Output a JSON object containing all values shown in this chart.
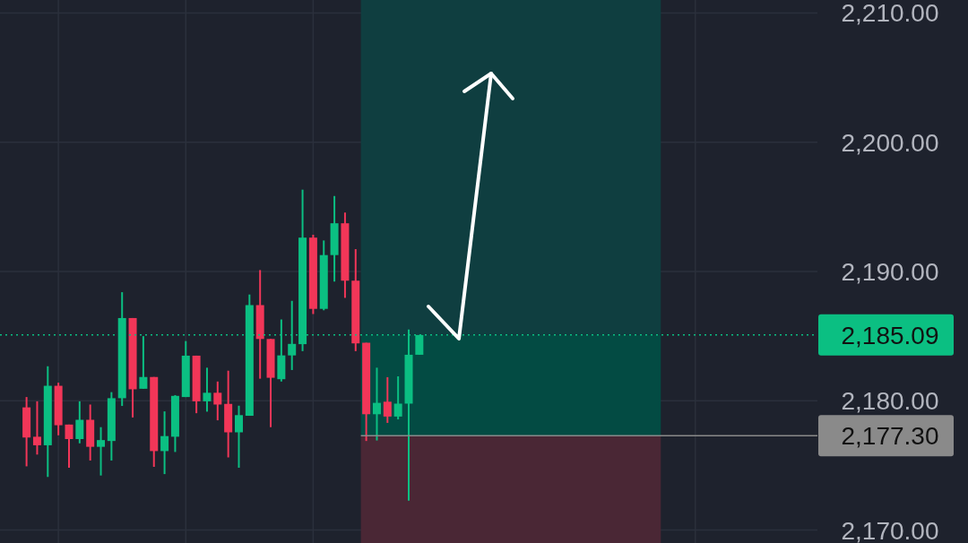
{
  "chart_data": {
    "type": "candlestick",
    "categories": [
      null,
      null,
      null,
      null,
      null,
      null,
      null,
      null,
      null,
      null,
      null,
      null,
      null,
      null,
      null,
      null,
      null,
      null,
      null,
      null,
      null,
      null,
      null,
      null,
      null,
      null,
      null,
      null,
      null,
      null,
      null,
      null,
      null,
      null,
      null,
      null,
      null,
      null,
      null,
      null,
      null,
      null,
      null,
      null,
      null,
      null,
      null,
      null,
      null,
      null,
      null,
      null,
      null,
      null,
      null,
      null,
      null,
      null,
      null,
      null,
      null,
      null,
      null,
      null,
      null,
      null,
      null,
      null,
      null,
      null,
      null,
      null,
      null,
      null,
      null,
      null,
      null
    ],
    "ohlc": [
      null,
      null,
      [
        2179.49,
        2180.29,
        2174.93,
        2177.16
      ],
      [
        2177.22,
        2179.96,
        2175.84,
        2176.56
      ],
      [
        2176.56,
        2182.67,
        2174.11,
        2181.16
      ],
      [
        2181.16,
        2181.4,
        2177.33,
        2178.11
      ],
      [
        2178.16,
        2178.16,
        2174.82,
        2177.04
      ],
      [
        2177.04,
        2179.96,
        2176.71,
        2178.53
      ],
      [
        2178.53,
        2179.71,
        2175.38,
        2176.44
      ],
      [
        2176.44,
        2177.96,
        2174.22,
        2176.96
      ],
      [
        2176.89,
        2180.67,
        2175.38,
        2180.2
      ],
      [
        2180.2,
        2188.4,
        2179.6,
        2186.4
      ],
      [
        2186.4,
        2186.4,
        2178.71,
        2180.89
      ],
      [
        2180.93,
        2185.0,
        2180.93,
        2181.84
      ],
      [
        2181.84,
        2181.84,
        2174.89,
        2176.11
      ],
      [
        2176.11,
        2179.18,
        2174.33,
        2177.27
      ],
      [
        2177.22,
        2180.44,
        2176.04,
        2180.38
      ],
      [
        2180.29,
        2184.62,
        2180.29,
        2183.49
      ],
      [
        2183.49,
        2183.49,
        2179.04,
        2179.96
      ],
      [
        2179.96,
        2182.56,
        2179.16,
        2180.62
      ],
      [
        2180.62,
        2181.49,
        2178.49,
        2179.71
      ],
      [
        2179.76,
        2182.33,
        2175.62,
        2177.56
      ],
      [
        2177.56,
        2179.62,
        2174.82,
        2178.89
      ],
      [
        2178.84,
        2188.22,
        2178.84,
        2187.4
      ],
      [
        2187.4,
        2190.11,
        2181.71,
        2184.78
      ],
      [
        2184.78,
        2184.78,
        2177.96,
        2181.78
      ],
      [
        2181.67,
        2186.29,
        2181.49,
        2183.51
      ],
      [
        2183.51,
        2187.73,
        2182.38,
        2184.4
      ],
      [
        2184.38,
        2196.33,
        2183.84,
        2192.62
      ],
      [
        2192.62,
        2192.84,
        2186.71,
        2187.11
      ],
      [
        2187.11,
        2192.4,
        2187.0,
        2191.27
      ],
      [
        2191.27,
        2195.84,
        2189.22,
        2193.73
      ],
      [
        2193.73,
        2194.56,
        2187.96,
        2189.29
      ],
      [
        2189.29,
        2191.73,
        2183.84,
        2184.44
      ],
      [
        2184.49,
        2184.49,
        2176.89,
        2178.96
      ],
      [
        2178.96,
        2182.56,
        2176.93,
        2179.84
      ],
      [
        2179.93,
        2181.82,
        2178.29,
        2178.78
      ],
      [
        2178.78,
        2181.89,
        2178.56,
        2179.78
      ],
      [
        2179.78,
        2185.51,
        2172.27,
        2183.56
      ],
      [
        2183.56,
        2185.09,
        2183.56,
        2185.09
      ],
      null,
      null,
      null,
      null,
      null,
      null,
      null,
      null,
      null,
      null,
      null,
      null,
      null,
      null,
      null,
      null,
      null,
      null,
      null,
      null,
      null,
      null,
      null,
      null,
      null,
      null,
      null,
      null,
      null,
      null,
      null,
      null,
      null,
      null,
      null,
      null,
      null
    ],
    "colors": [
      null,
      null,
      "#f23658",
      "#f23658",
      "#0bbf82",
      "#f23658",
      "#f23658",
      "#0bbf82",
      "#f23658",
      "#0bbf82",
      "#0bbf82",
      "#0bbf82",
      "#f23658",
      "#0bbf82",
      "#f23658",
      "#0bbf82",
      "#0bbf82",
      "#0bbf82",
      "#f23658",
      "#0bbf82",
      "#f23658",
      "#f23658",
      "#0bbf82",
      "#0bbf82",
      "#f23658",
      "#f23658",
      "#0bbf82",
      "#0bbf82",
      "#0bbf82",
      "#f23658",
      "#0bbf82",
      "#0bbf82",
      "#f23658",
      "#f23658",
      "#f23658",
      "#0bbf82",
      "#f23658",
      "#0bbf82",
      "#0bbf82",
      "#0bbf82",
      null,
      null,
      null,
      null,
      null,
      null,
      null,
      null,
      null,
      null,
      null,
      null,
      null,
      null,
      null,
      null,
      null,
      null,
      null,
      null,
      null,
      null,
      null,
      null,
      null,
      null,
      null,
      null,
      null,
      null,
      null,
      null,
      null,
      null,
      null,
      null,
      null
    ],
    "ylim": [
      2169,
      2211
    ],
    "yticks": [
      {
        "value": 2170,
        "label": "2,170.00"
      },
      {
        "value": 2180,
        "label": "2,180.00"
      },
      {
        "value": 2190,
        "label": "2,190.00"
      },
      {
        "value": 2200,
        "label": "2,200.00"
      },
      {
        "value": 2210,
        "label": "2,210.00"
      }
    ],
    "grid": true,
    "tick_labels": "y",
    "bands": [
      {
        "axis": "y",
        "from": 2185.09,
        "to": 2211,
        "color": "#0f3e40"
      },
      {
        "axis": "y",
        "from": 2177.3,
        "to": 2185.09,
        "color": "#034b43"
      },
      {
        "axis": "y",
        "from": 2169,
        "to": 2177.3,
        "color": "#4a2735"
      }
    ],
    "ref_lines": [
      {
        "axis": "y",
        "value": 2185.09,
        "label": "2,185.09",
        "color": "#0bbf82",
        "line_style": "dotted"
      },
      {
        "axis": "y",
        "value": 2177.3,
        "label": "2,177.30",
        "color": "#8a8a8a",
        "line_style": "solid"
      }
    ]
  }
}
